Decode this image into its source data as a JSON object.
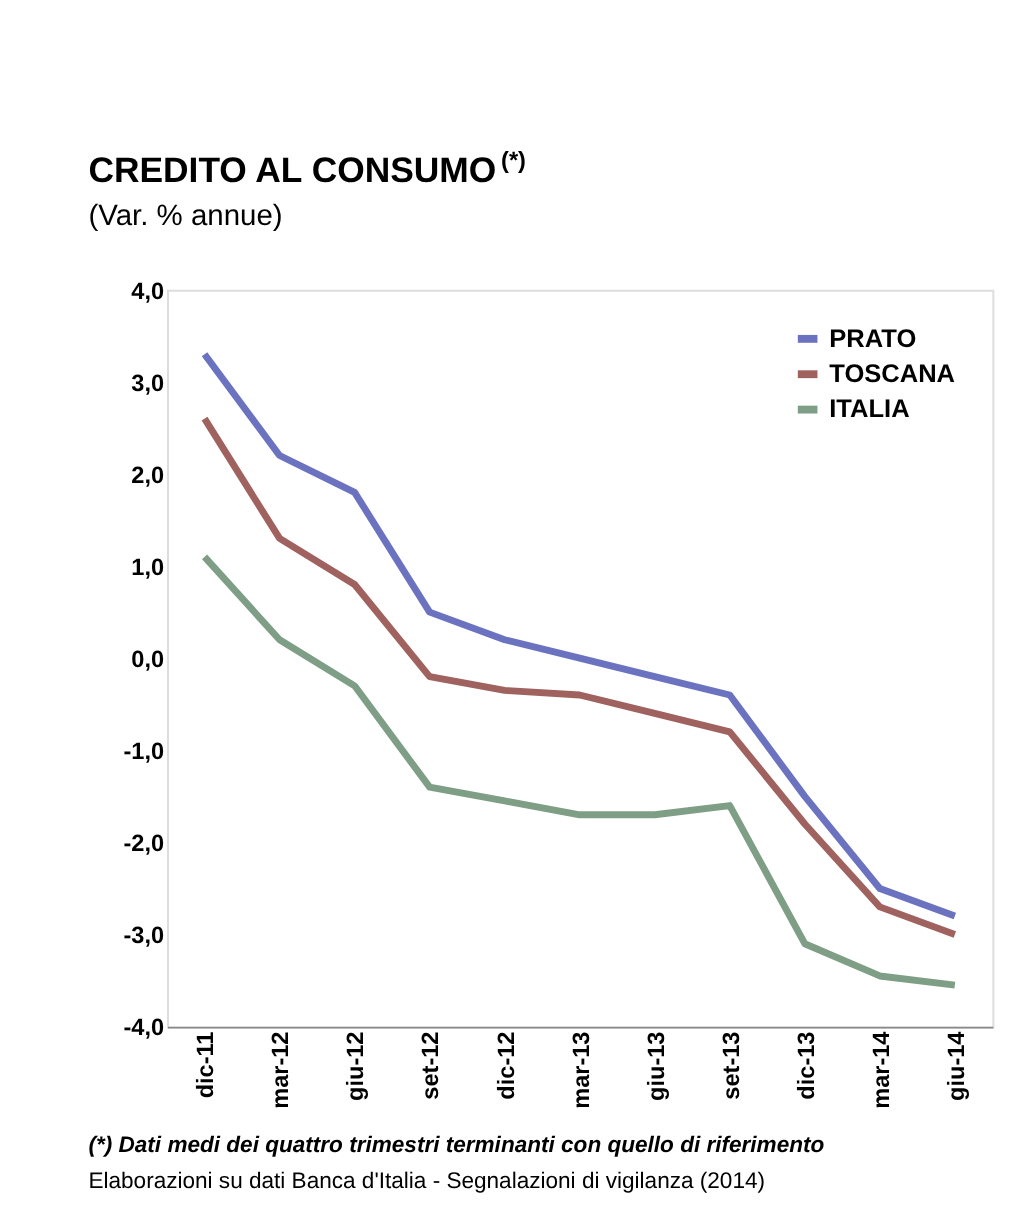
{
  "chart_data": {
    "type": "line",
    "title": "CREDITO AL CONSUMO$^{(*)}$",
    "subtitle": "(Var. % annue)",
    "categories": [
      "dic-11",
      "mar-12",
      "giu-12",
      "set-12",
      "dic-12",
      "mar-13",
      "giu-13",
      "set-13",
      "dic-13",
      "mar-14",
      "giu-14"
    ],
    "series": [
      {
        "name": "PRATO",
        "color": "#6b73c0",
        "values": [
          3.3,
          2.2,
          1.8,
          0.5,
          0.2,
          0.0,
          -0.2,
          -0.4,
          -1.5,
          -2.5,
          -2.8
        ]
      },
      {
        "name": "TOSCANA",
        "color": "#a0625e",
        "values": [
          2.6,
          1.3,
          0.8,
          -0.2,
          -0.35,
          -0.4,
          -0.6,
          -0.8,
          -1.8,
          -2.7,
          -3.0
        ]
      },
      {
        "name": "ITALIA",
        "color": "#7f9e86",
        "values": [
          1.1,
          0.2,
          -0.3,
          -1.4,
          -1.55,
          -1.7,
          -1.7,
          -1.6,
          -3.1,
          -3.45,
          -3.55
        ]
      }
    ],
    "ylim": [
      -4,
      4
    ],
    "yticks": [
      {
        "value": -4,
        "label": "-4,0"
      },
      {
        "value": -3,
        "label": "-3,0"
      },
      {
        "value": -2,
        "label": "-2,0"
      },
      {
        "value": -1,
        "label": "-1,0"
      },
      {
        "value": 0,
        "label": "0,0"
      },
      {
        "value": 1,
        "label": "1,0"
      },
      {
        "value": 2,
        "label": "2,0"
      },
      {
        "value": 3,
        "label": "3,0"
      },
      {
        "value": 4,
        "label": "4,0"
      }
    ],
    "legend": "top right",
    "grid": false,
    "marker": "none",
    "line_style": "solid",
    "annotations": [
      "(*) Dati medi dei quattro trimestri terminanti con quello di riferimento",
      "Elaborazioni su dati Banca d'Italia - Segnalazioni di vigilanza (2014)"
    ]
  }
}
